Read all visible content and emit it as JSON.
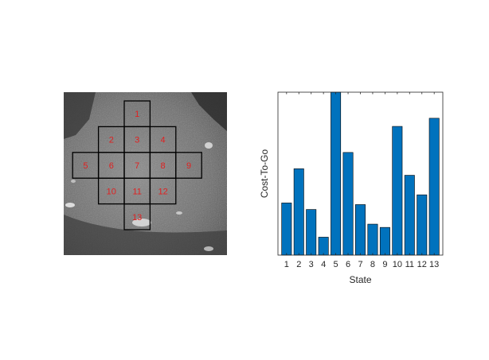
{
  "photo": {
    "cell_labels": [
      "1",
      "2",
      "3",
      "4",
      "5",
      "6",
      "7",
      "8",
      "9",
      "10",
      "11",
      "12",
      "13"
    ]
  },
  "colors": {
    "bar_fill": "#0072BD",
    "bar_edge": "#000000",
    "grid_label": "#E02020",
    "grid_line": "#000000"
  },
  "chart_data": {
    "type": "bar",
    "categories": [
      "1",
      "2",
      "3",
      "4",
      "5",
      "6",
      "7",
      "8",
      "9",
      "10",
      "11",
      "12",
      "13"
    ],
    "values": [
      0.32,
      0.53,
      0.28,
      0.11,
      1.0,
      0.63,
      0.31,
      0.19,
      0.17,
      0.79,
      0.49,
      0.37,
      0.84
    ],
    "title": "",
    "xlabel": "State",
    "ylabel": "Cost-To-Go",
    "ylim": [
      0,
      1
    ],
    "y_tick_labels_visible": false,
    "grid": false
  }
}
